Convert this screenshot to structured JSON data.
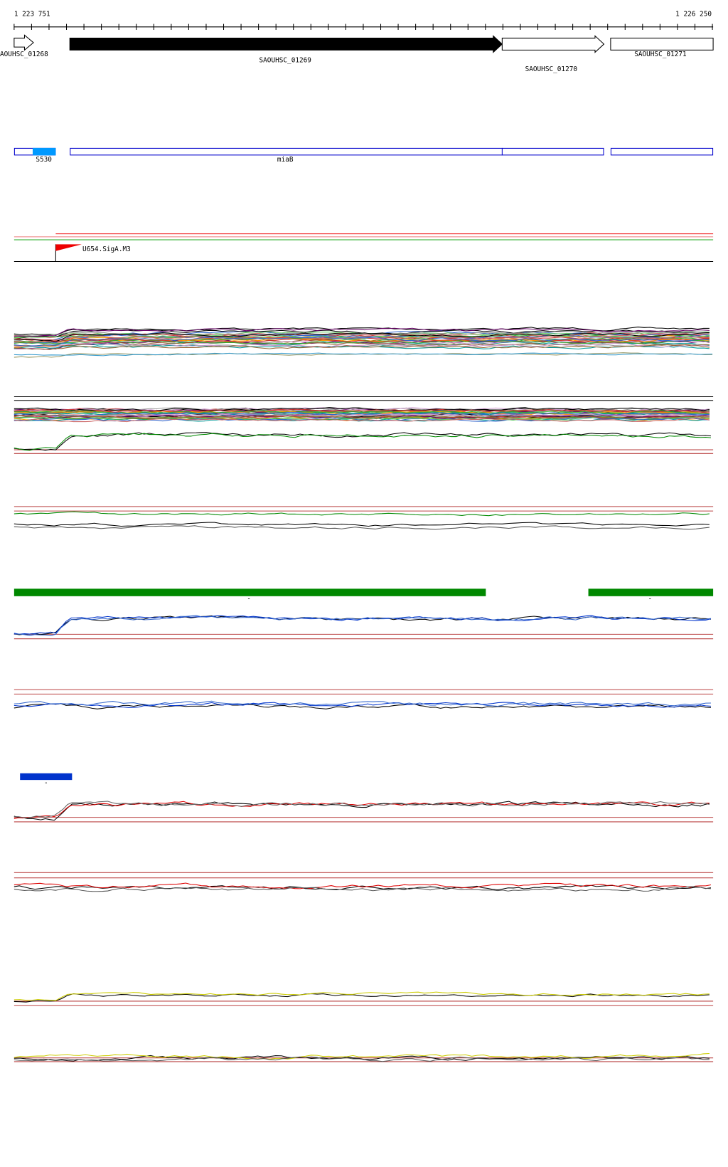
{
  "ruler": {
    "start": "1 223 751",
    "end": "1 226 250"
  },
  "genes": [
    {
      "label": "AOUHSC_01268"
    },
    {
      "label": "SAOUHSC_01269"
    },
    {
      "label": "SAOUHSC_01270"
    },
    {
      "label": "SAOUHSC_01271"
    }
  ],
  "features": [
    {
      "label": "S530"
    },
    {
      "label": "miaB"
    }
  ],
  "promoter": {
    "label": "U654.SigA.M3"
  },
  "track_labels": [
    "-",
    "-",
    "-"
  ]
}
